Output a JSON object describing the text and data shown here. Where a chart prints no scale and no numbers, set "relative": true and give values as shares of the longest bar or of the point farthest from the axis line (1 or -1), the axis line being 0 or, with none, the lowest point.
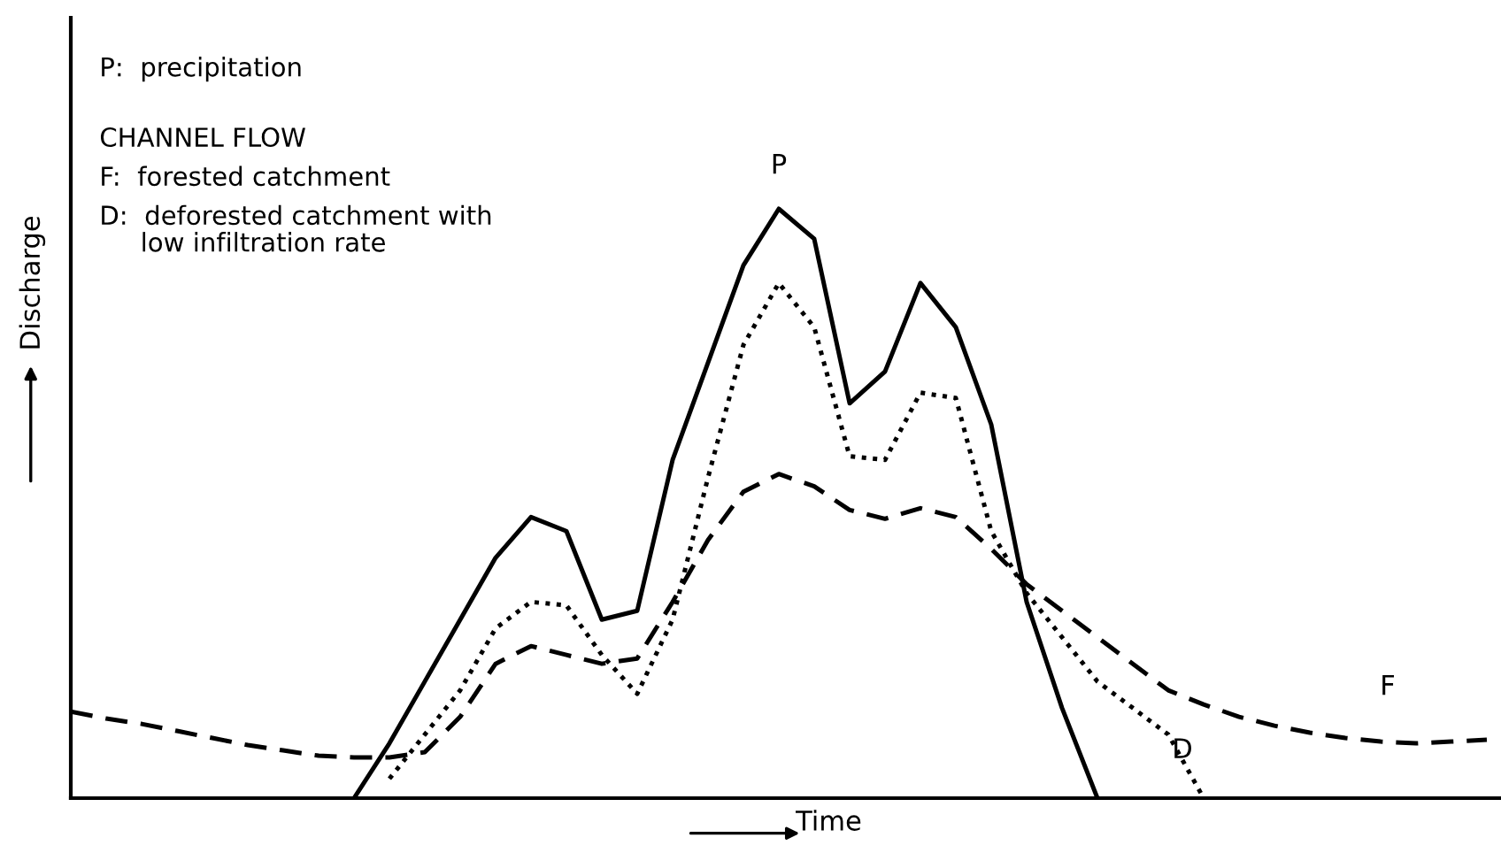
{
  "chart_data": {
    "type": "line",
    "relative": true,
    "xlabel": "Time",
    "ylabel": "Discharge",
    "legend": false,
    "marker": "none",
    "annotations": [
      "P:  precipitation",
      "CHANNEL FLOW",
      "F:  forested catchment",
      "D:  deforested catchment with\n     low infiltration rate"
    ],
    "categories": [
      null,
      null,
      null,
      null,
      null,
      null,
      null,
      null,
      null,
      null,
      null,
      null,
      null,
      null,
      null,
      null,
      null,
      null,
      null,
      null,
      null,
      null,
      null,
      null,
      null,
      null,
      null,
      null,
      null,
      null,
      null,
      null,
      null,
      null,
      null,
      null,
      null,
      null,
      null,
      null,
      null
    ],
    "series": [
      {
        "name": "P",
        "color": "#000000",
        "line_style": "solid",
        "values": [
          null,
          null,
          null,
          null,
          null,
          null,
          null,
          null,
          0,
          0.093,
          0.198,
          0.303,
          0.408,
          0.477,
          0.453,
          0.303,
          0.318,
          0.574,
          0.739,
          0.904,
          1.0,
          0.949,
          0.67,
          0.724,
          0.874,
          0.799,
          0.634,
          0.333,
          0.153,
          0,
          null,
          null,
          null,
          null,
          null,
          null,
          null,
          null,
          null,
          null,
          null
        ]
      },
      {
        "name": "D",
        "color": "#000000",
        "line_style": "dotted",
        "values": [
          null,
          null,
          null,
          null,
          null,
          null,
          null,
          null,
          null,
          0.033,
          0.108,
          0.183,
          0.288,
          0.333,
          0.327,
          0.243,
          0.177,
          0.303,
          0.544,
          0.769,
          0.874,
          0.799,
          0.58,
          0.574,
          0.688,
          0.679,
          0.453,
          0.348,
          0.273,
          0.198,
          0.153,
          0.108,
          0,
          null,
          null,
          null,
          null,
          null,
          null,
          null,
          null
        ]
      },
      {
        "name": "F",
        "color": "#000000",
        "line_style": "dashed",
        "values": [
          0.147,
          0.135,
          0.126,
          0.114,
          0.102,
          0.09,
          0.081,
          0.072,
          0.069,
          0.069,
          0.078,
          0.138,
          0.228,
          0.258,
          0.243,
          0.228,
          0.237,
          0.333,
          0.438,
          0.52,
          0.55,
          0.529,
          0.489,
          0.474,
          0.492,
          0.477,
          0.423,
          0.363,
          0.318,
          0.273,
          0.228,
          0.183,
          0.159,
          0.138,
          0.123,
          0.111,
          0.102,
          0.096,
          0.093,
          0.096,
          0.099
        ]
      }
    ]
  }
}
